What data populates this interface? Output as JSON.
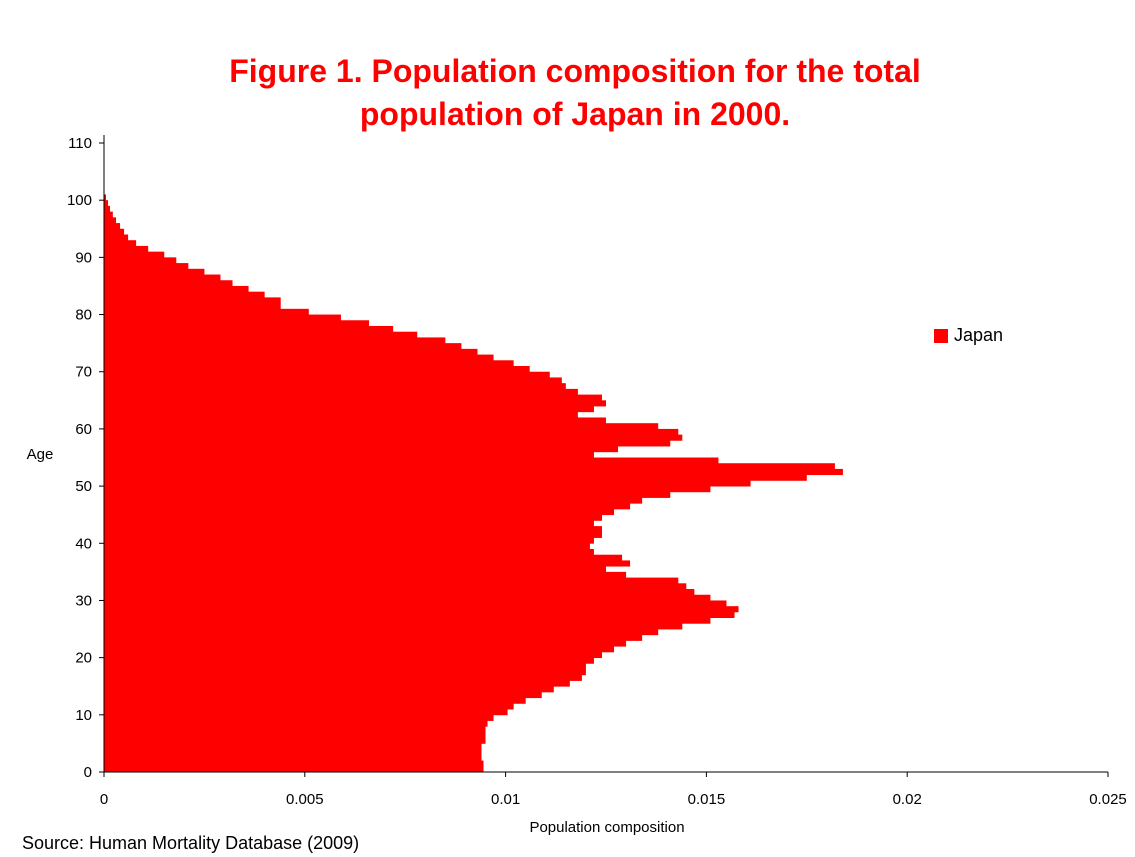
{
  "title_lines": [
    "Figure 1. Population composition for the total",
    "population of Japan in 2000."
  ],
  "source": "Source: Human Mortality Database (2009)",
  "colors": {
    "bar": "#ff0000",
    "axis": "#000000",
    "text": "#000000",
    "title": "#ff0000"
  },
  "chart_data": {
    "type": "bar",
    "orientation": "horizontal",
    "title": "Figure 1. Population composition for the total population of Japan in 2000.",
    "xlabel": "Population composition",
    "ylabel": "Age",
    "xlim": [
      0,
      0.025
    ],
    "ylim": [
      0,
      110
    ],
    "x_ticks": [
      "0",
      "0.005",
      "0.01",
      "0.015",
      "0.02",
      "0.025"
    ],
    "y_ticks": [
      "0",
      "10",
      "20",
      "30",
      "40",
      "50",
      "60",
      "70",
      "80",
      "90",
      "100",
      "110"
    ],
    "legend": {
      "entries": [
        "Japan"
      ],
      "position": "right"
    },
    "grid": false,
    "series": [
      {
        "name": "Japan",
        "categories": [
          0,
          1,
          2,
          3,
          4,
          5,
          6,
          7,
          8,
          9,
          10,
          11,
          12,
          13,
          14,
          15,
          16,
          17,
          18,
          19,
          20,
          21,
          22,
          23,
          24,
          25,
          26,
          27,
          28,
          29,
          30,
          31,
          32,
          33,
          34,
          35,
          36,
          37,
          38,
          39,
          40,
          41,
          42,
          43,
          44,
          45,
          46,
          47,
          48,
          49,
          50,
          51,
          52,
          53,
          54,
          55,
          56,
          57,
          58,
          59,
          60,
          61,
          62,
          63,
          64,
          65,
          66,
          67,
          68,
          69,
          70,
          71,
          72,
          73,
          74,
          75,
          76,
          77,
          78,
          79,
          80,
          81,
          82,
          83,
          84,
          85,
          86,
          87,
          88,
          89,
          90,
          91,
          92,
          93,
          94,
          95,
          96,
          97,
          98,
          99,
          100
        ],
        "values": [
          0.00945,
          0.00945,
          0.0094,
          0.0094,
          0.0094,
          0.0095,
          0.0095,
          0.0095,
          0.00955,
          0.0097,
          0.01005,
          0.0102,
          0.0105,
          0.0109,
          0.0112,
          0.0116,
          0.0119,
          0.012,
          0.012,
          0.0122,
          0.0124,
          0.0127,
          0.013,
          0.0134,
          0.0138,
          0.0144,
          0.0151,
          0.0157,
          0.0158,
          0.0155,
          0.0151,
          0.0147,
          0.0145,
          0.0143,
          0.013,
          0.0125,
          0.0131,
          0.0129,
          0.0122,
          0.0121,
          0.0122,
          0.0124,
          0.0124,
          0.0122,
          0.0124,
          0.0127,
          0.0131,
          0.0134,
          0.0141,
          0.0151,
          0.0161,
          0.0175,
          0.0184,
          0.0182,
          0.0153,
          0.0122,
          0.0128,
          0.0141,
          0.0144,
          0.0143,
          0.0138,
          0.0125,
          0.0118,
          0.0122,
          0.0125,
          0.0124,
          0.0118,
          0.0115,
          0.0114,
          0.0111,
          0.0106,
          0.0102,
          0.0097,
          0.0093,
          0.0089,
          0.0085,
          0.0078,
          0.0072,
          0.0066,
          0.0059,
          0.0051,
          0.0044,
          0.0044,
          0.004,
          0.0036,
          0.0032,
          0.0029,
          0.0025,
          0.0021,
          0.0018,
          0.0015,
          0.0011,
          0.0008,
          0.0006,
          0.0005,
          0.0004,
          0.0003,
          0.00022,
          0.00015,
          0.0001,
          5e-05
        ]
      }
    ]
  }
}
